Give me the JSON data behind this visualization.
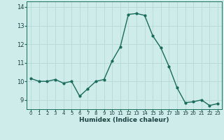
{
  "x": [
    0,
    1,
    2,
    3,
    4,
    5,
    6,
    7,
    8,
    9,
    10,
    11,
    12,
    13,
    14,
    15,
    16,
    17,
    18,
    19,
    20,
    21,
    22,
    23
  ],
  "y": [
    10.15,
    10.0,
    10.0,
    10.1,
    9.9,
    10.0,
    9.2,
    9.6,
    10.0,
    10.1,
    11.1,
    11.85,
    13.6,
    13.65,
    13.55,
    12.45,
    11.8,
    10.8,
    9.65,
    8.85,
    8.9,
    9.0,
    8.7,
    8.8
  ],
  "line_color": "#1a6b5a",
  "marker": "o",
  "markersize": 2.0,
  "linewidth": 1.0,
  "bg_color": "#ceecea",
  "grid_color": "#b8d8d5",
  "tick_color": "#1a6b5a",
  "label_color": "#1a4040",
  "xlabel": "Humidex (Indice chaleur)",
  "xlim": [
    -0.5,
    23.5
  ],
  "ylim": [
    8.5,
    14.3
  ],
  "yticks": [
    9,
    10,
    11,
    12,
    13,
    14
  ],
  "xticks": [
    0,
    1,
    2,
    3,
    4,
    5,
    6,
    7,
    8,
    9,
    10,
    11,
    12,
    13,
    14,
    15,
    16,
    17,
    18,
    19,
    20,
    21,
    22,
    23
  ],
  "xlabel_fontsize": 6.5,
  "xtick_fontsize": 5.0,
  "ytick_fontsize": 6.0,
  "figsize": [
    3.2,
    2.0
  ],
  "dpi": 100
}
